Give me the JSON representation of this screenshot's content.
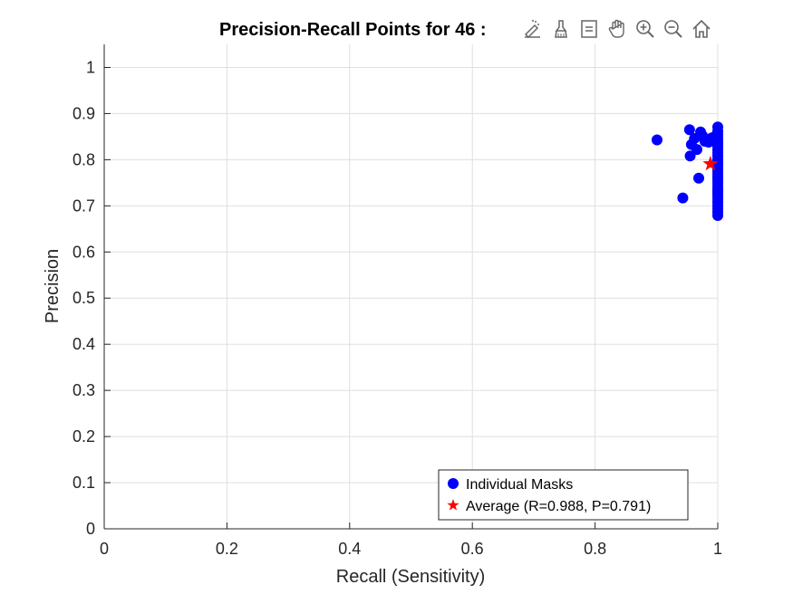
{
  "toolbar": {
    "icons": [
      "data-tips-icon",
      "brush-icon",
      "restore-view-icon",
      "pan-icon",
      "zoom-in-icon",
      "zoom-out-icon",
      "home-icon"
    ]
  },
  "colors": {
    "individual": "#0000ff",
    "average": "#ff0000",
    "grid": "#dfdfdf",
    "axis": "#262626"
  },
  "chart_data": {
    "type": "scatter",
    "title": "Precision-Recall Points for 46 :",
    "xlabel": "Recall (Sensitivity)",
    "ylabel": "Precision",
    "xlim": [
      0,
      1
    ],
    "ylim": [
      0,
      1.05
    ],
    "xticks": [
      "0",
      "0.2",
      "0.4",
      "0.6",
      "0.8",
      "1"
    ],
    "yticks": [
      "0",
      "0.1",
      "0.2",
      "0.3",
      "0.4",
      "0.5",
      "0.6",
      "0.7",
      "0.8",
      "0.9",
      "1"
    ],
    "grid": true,
    "legend_position": "bottom-right",
    "series": [
      {
        "name": "Individual Masks",
        "marker": "circle",
        "color": "#0000ff",
        "points": [
          [
            0.901,
            0.843
          ],
          [
            0.943,
            0.717
          ],
          [
            0.954,
            0.865
          ],
          [
            0.955,
            0.808
          ],
          [
            0.957,
            0.833
          ],
          [
            0.962,
            0.846
          ],
          [
            0.966,
            0.822
          ],
          [
            0.969,
            0.76
          ],
          [
            0.972,
            0.86
          ],
          [
            0.975,
            0.852
          ],
          [
            0.979,
            0.84
          ],
          [
            0.985,
            0.838
          ],
          [
            0.99,
            0.847
          ],
          [
            0.995,
            0.85
          ],
          [
            1.0,
            0.871
          ],
          [
            1.0,
            0.862
          ],
          [
            1.0,
            0.855
          ],
          [
            1.0,
            0.848
          ],
          [
            1.0,
            0.841
          ],
          [
            1.0,
            0.835
          ],
          [
            1.0,
            0.829
          ],
          [
            1.0,
            0.822
          ],
          [
            1.0,
            0.815
          ],
          [
            1.0,
            0.808
          ],
          [
            1.0,
            0.801
          ],
          [
            1.0,
            0.795
          ],
          [
            1.0,
            0.788
          ],
          [
            1.0,
            0.781
          ],
          [
            1.0,
            0.775
          ],
          [
            1.0,
            0.768
          ],
          [
            1.0,
            0.761
          ],
          [
            1.0,
            0.754
          ],
          [
            1.0,
            0.747
          ],
          [
            1.0,
            0.74
          ],
          [
            1.0,
            0.734
          ],
          [
            1.0,
            0.727
          ],
          [
            1.0,
            0.72
          ],
          [
            1.0,
            0.713
          ],
          [
            1.0,
            0.707
          ],
          [
            1.0,
            0.7
          ],
          [
            1.0,
            0.693
          ],
          [
            1.0,
            0.686
          ],
          [
            1.0,
            0.679
          ],
          [
            1.0,
            0.79
          ],
          [
            1.0,
            0.76
          ],
          [
            1.0,
            0.73
          ]
        ]
      },
      {
        "name": "Average (R=0.988, P=0.791)",
        "marker": "star",
        "color": "#ff0000",
        "points": [
          [
            0.988,
            0.791
          ]
        ]
      }
    ]
  }
}
